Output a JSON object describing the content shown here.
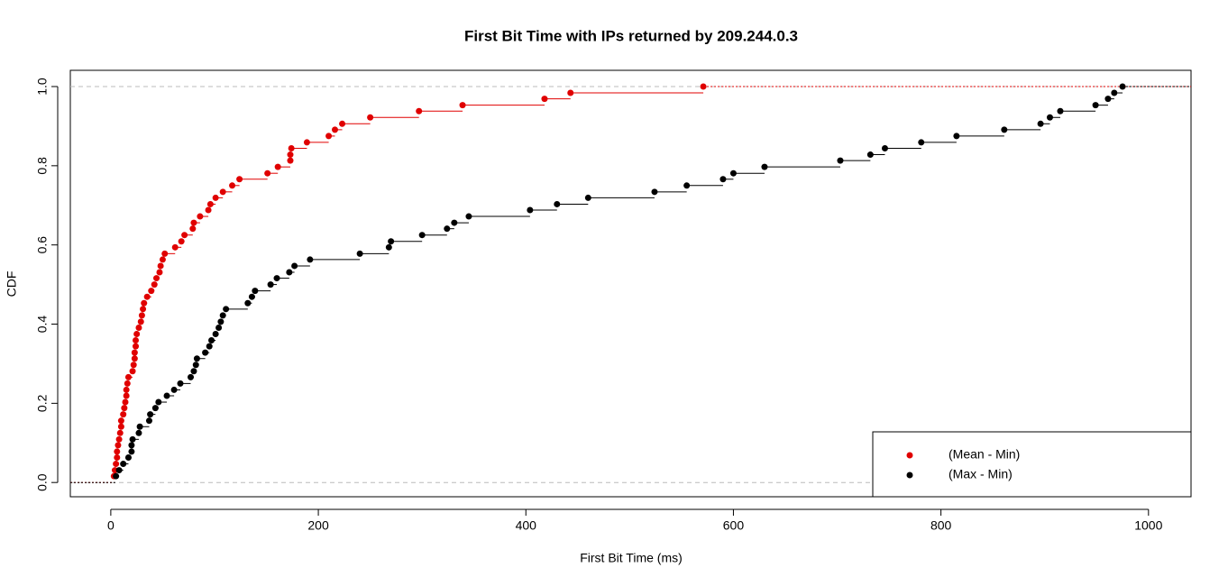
{
  "chart_data": {
    "type": "ecdf",
    "title": "First Bit Time with IPs returned by 209.244.0.3",
    "x_label": "First Bit Time (ms)",
    "y_label": "CDF",
    "xlim": [
      -39,
      1041
    ],
    "ylim": [
      -0.036,
      1.041
    ],
    "xticks": [
      0,
      200,
      400,
      600,
      800,
      1000
    ],
    "yticks": [
      {
        "value": 0,
        "label": "0.0"
      },
      0.2,
      0.4,
      0.6,
      0.8,
      {
        "value": 1,
        "label": "1.0"
      }
    ],
    "reference_lines": [
      0,
      1
    ],
    "legend_position": "bottomright",
    "series": [
      {
        "name": "(Mean - Min)",
        "color": "#e00000",
        "x": [
          3,
          4,
          5,
          6,
          6,
          7,
          8,
          9,
          10,
          10,
          12,
          13,
          14,
          15,
          15,
          16,
          17,
          21,
          22,
          23,
          23,
          24,
          24,
          25,
          27,
          29,
          30,
          31,
          32,
          35,
          39,
          42,
          44,
          47,
          48,
          50,
          52,
          62,
          68,
          71,
          79,
          80,
          86,
          94,
          96,
          101,
          108,
          117,
          124,
          151,
          161,
          173,
          173,
          174,
          189,
          210,
          216,
          223,
          250,
          297,
          339,
          418,
          443,
          571
        ],
        "values": [
          0.016,
          0.031,
          0.047,
          0.063,
          0.078,
          0.094,
          0.109,
          0.125,
          0.141,
          0.156,
          0.172,
          0.188,
          0.203,
          0.219,
          0.234,
          0.25,
          0.266,
          0.281,
          0.297,
          0.313,
          0.328,
          0.344,
          0.359,
          0.375,
          0.391,
          0.406,
          0.422,
          0.438,
          0.453,
          0.469,
          0.484,
          0.5,
          0.516,
          0.531,
          0.547,
          0.563,
          0.578,
          0.594,
          0.609,
          0.625,
          0.641,
          0.656,
          0.672,
          0.688,
          0.703,
          0.719,
          0.734,
          0.75,
          0.766,
          0.781,
          0.797,
          0.813,
          0.828,
          0.844,
          0.859,
          0.875,
          0.891,
          0.906,
          0.922,
          0.938,
          0.953,
          0.969,
          0.984,
          1.0
        ]
      },
      {
        "name": "(Max - Min)",
        "color": "#000000",
        "x": [
          5,
          8,
          12,
          17,
          20,
          20,
          21,
          27,
          28,
          37,
          38,
          43,
          46,
          54,
          61,
          67,
          77,
          80,
          82,
          83,
          91,
          95,
          97,
          101,
          104,
          106,
          108,
          111,
          132,
          136,
          139,
          154,
          160,
          172,
          177,
          192,
          240,
          268,
          270,
          300,
          324,
          331,
          345,
          404,
          430,
          460,
          524,
          555,
          590,
          600,
          630,
          703,
          732,
          746,
          781,
          815,
          861,
          896,
          905,
          915,
          949,
          961,
          967,
          975
        ],
        "values": [
          0.016,
          0.031,
          0.047,
          0.063,
          0.078,
          0.094,
          0.109,
          0.125,
          0.141,
          0.156,
          0.172,
          0.188,
          0.203,
          0.219,
          0.234,
          0.25,
          0.266,
          0.281,
          0.297,
          0.313,
          0.328,
          0.344,
          0.359,
          0.375,
          0.391,
          0.406,
          0.422,
          0.438,
          0.453,
          0.469,
          0.484,
          0.5,
          0.516,
          0.531,
          0.547,
          0.563,
          0.578,
          0.594,
          0.609,
          0.625,
          0.641,
          0.656,
          0.672,
          0.688,
          0.703,
          0.719,
          0.734,
          0.75,
          0.766,
          0.781,
          0.797,
          0.813,
          0.828,
          0.844,
          0.859,
          0.875,
          0.891,
          0.906,
          0.922,
          0.938,
          0.953,
          0.969,
          0.984,
          1.0
        ]
      }
    ]
  }
}
